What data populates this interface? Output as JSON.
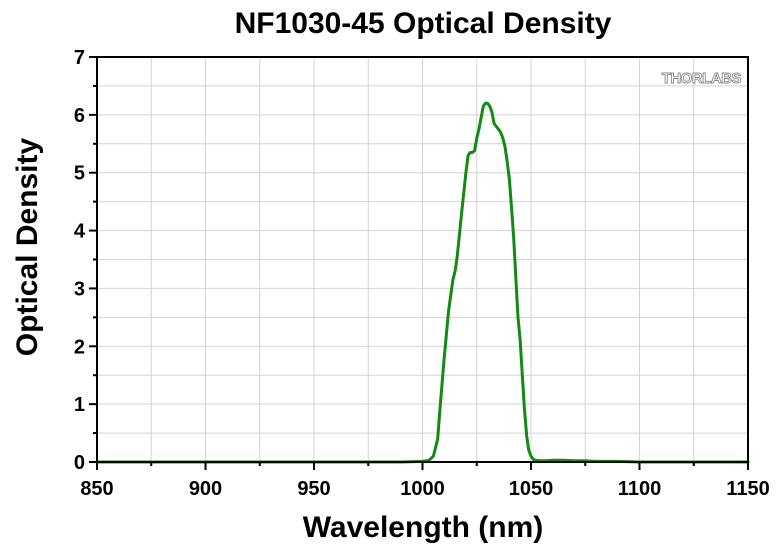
{
  "chart_data": {
    "type": "line",
    "title": "NF1030-45 Optical Density",
    "xlabel": "Wavelength (nm)",
    "ylabel": "Optical Density",
    "xlim": [
      850,
      1150
    ],
    "ylim": [
      0,
      7
    ],
    "xticks": [
      850,
      900,
      950,
      1000,
      1050,
      1100,
      1150
    ],
    "yticks": [
      0,
      1,
      2,
      3,
      4,
      5,
      6,
      7
    ],
    "grid": true,
    "legend": "none",
    "watermark": "THORLABS",
    "series": [
      {
        "color": "#138a13",
        "x": [
          850,
          900,
          950,
          990,
          1000,
          1003,
          1005,
          1007,
          1008,
          1010,
          1012,
          1014,
          1015,
          1016,
          1018,
          1020,
          1021,
          1022,
          1023,
          1024,
          1025,
          1026,
          1027,
          1028,
          1029,
          1030,
          1031,
          1032,
          1033,
          1034,
          1035,
          1036,
          1037,
          1038,
          1039,
          1040,
          1041,
          1042,
          1043,
          1044,
          1045,
          1046,
          1047,
          1048,
          1049,
          1050,
          1051,
          1052,
          1054,
          1057,
          1060,
          1065,
          1070,
          1075,
          1080,
          1085,
          1090,
          1100,
          1120,
          1150
        ],
        "y": [
          0.0,
          0.0,
          0.0,
          0.0,
          0.01,
          0.03,
          0.1,
          0.4,
          0.9,
          1.8,
          2.6,
          3.15,
          3.3,
          3.55,
          4.3,
          5.0,
          5.3,
          5.35,
          5.35,
          5.38,
          5.6,
          5.75,
          5.95,
          6.15,
          6.2,
          6.2,
          6.15,
          6.05,
          5.85,
          5.8,
          5.75,
          5.7,
          5.6,
          5.45,
          5.2,
          4.9,
          4.4,
          3.9,
          3.2,
          2.5,
          2.1,
          1.5,
          0.9,
          0.45,
          0.2,
          0.1,
          0.05,
          0.03,
          0.02,
          0.02,
          0.03,
          0.03,
          0.02,
          0.02,
          0.01,
          0.01,
          0.01,
          0.0,
          0.0,
          0.0
        ]
      }
    ]
  }
}
